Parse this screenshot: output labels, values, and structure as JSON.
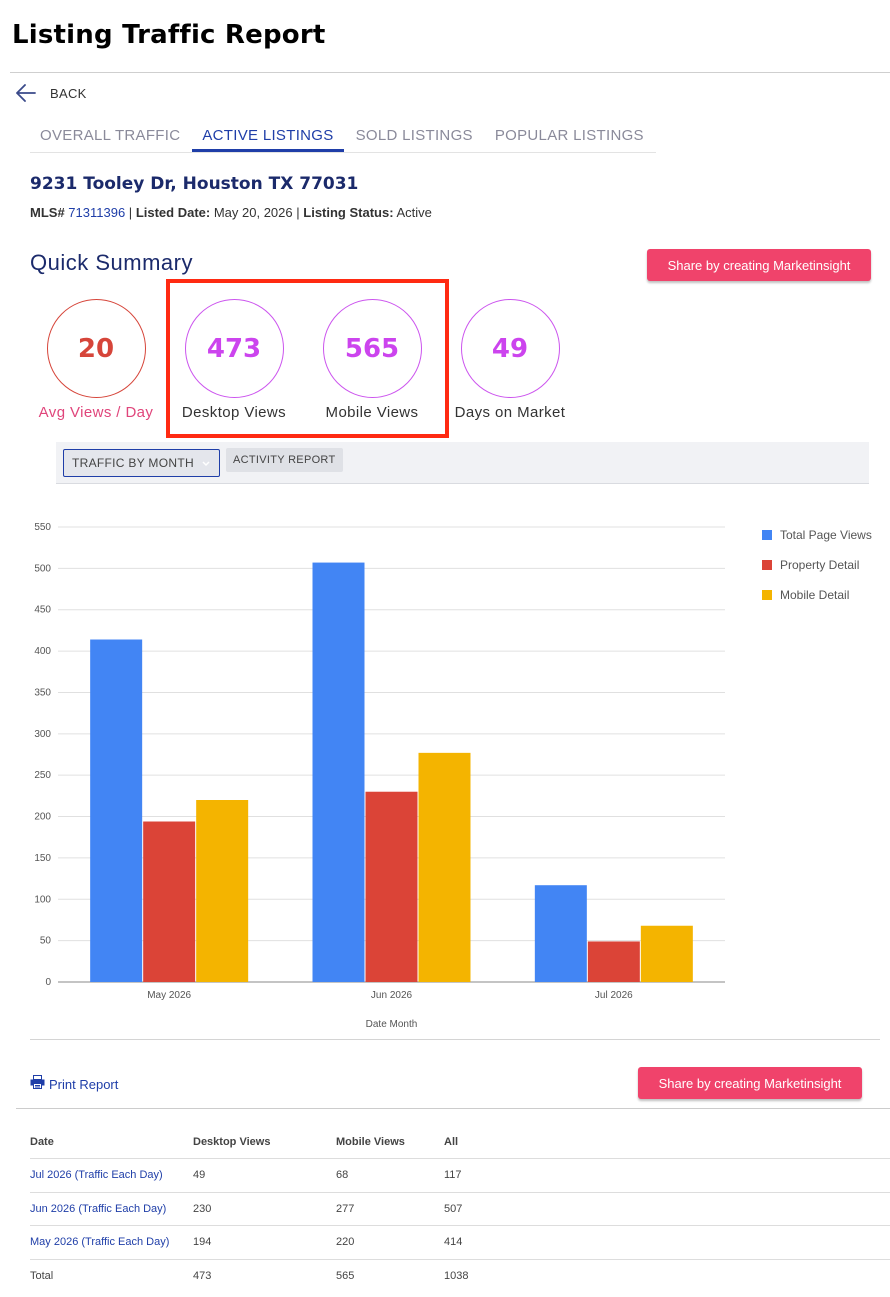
{
  "page": {
    "title": "Listing Traffic Report",
    "back_label": "BACK"
  },
  "tabs": [
    {
      "label": "OVERALL TRAFFIC",
      "active": false
    },
    {
      "label": "ACTIVE LISTINGS",
      "active": true
    },
    {
      "label": "SOLD LISTINGS",
      "active": false
    },
    {
      "label": "POPULAR LISTINGS",
      "active": false
    }
  ],
  "listing": {
    "address": "9231 Tooley Dr, Houston TX 77031",
    "mls_label": "MLS#",
    "mls_number": "71311396",
    "listed_date_label": "Listed Date:",
    "listed_date": "May 20, 2026",
    "status_label": "Listing Status:",
    "status": "Active"
  },
  "summary": {
    "title": "Quick Summary",
    "share_label": "Share by creating Marketinsight",
    "stats": {
      "avg": {
        "value": "20",
        "label": "Avg Views / Day"
      },
      "desktop": {
        "value": "473",
        "label": "Desktop Views"
      },
      "mobile": {
        "value": "565",
        "label": "Mobile Views"
      },
      "days": {
        "value": "49",
        "label": "Days on Market"
      }
    }
  },
  "report_bar": {
    "select_value": "TRAFFIC BY MONTH",
    "activity_label": "ACTIVITY REPORT"
  },
  "chart_data": {
    "type": "bar",
    "categories": [
      "May 2026",
      "Jun 2026",
      "Jul 2026"
    ],
    "series": [
      {
        "name": "Total Page Views",
        "values": [
          414,
          507,
          117
        ],
        "color": "#4285f4"
      },
      {
        "name": "Property Detail",
        "values": [
          194,
          230,
          49
        ],
        "color": "#db4437"
      },
      {
        "name": "Mobile Detail",
        "values": [
          220,
          277,
          68
        ],
        "color": "#f4b400"
      }
    ],
    "xlabel": "Date Month",
    "ylabel": "",
    "ylim": [
      0,
      550
    ],
    "yticks": [
      0,
      50,
      100,
      150,
      200,
      250,
      300,
      350,
      400,
      450,
      500,
      550
    ],
    "grid": true,
    "legend_position": "right"
  },
  "footer": {
    "print_label": "Print Report",
    "share_label": "Share by creating Marketinsight"
  },
  "table": {
    "columns": [
      "Date",
      "Desktop Views",
      "Mobile Views",
      "All"
    ],
    "rows": [
      {
        "date": "Jul 2026 (Traffic Each Day)",
        "desktop": "49",
        "mobile": "68",
        "all": "117"
      },
      {
        "date": "Jun 2026 (Traffic Each Day)",
        "desktop": "230",
        "mobile": "277",
        "all": "507"
      },
      {
        "date": "May 2026 (Traffic Each Day)",
        "desktop": "194",
        "mobile": "220",
        "all": "414"
      }
    ],
    "total": {
      "label": "Total",
      "desktop": "473",
      "mobile": "565",
      "all": "1038"
    }
  },
  "colors": {
    "accent": "#1f3ea8",
    "share_button": "#f0436b",
    "highlight": "#ff2a12",
    "stat_purple": "#cc44ee",
    "stat_red": "#d6453a"
  },
  "icons": {
    "back": "arrow-left-icon",
    "select": "chevron-down-icon",
    "print": "printer-icon"
  }
}
